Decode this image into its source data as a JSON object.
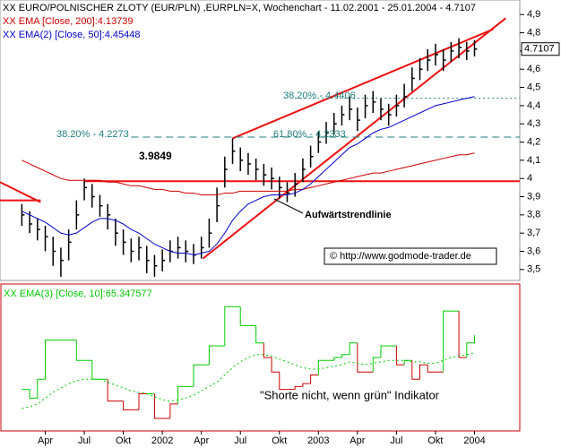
{
  "chart_data": [
    {
      "type": "ohlc",
      "x": [
        2001.1,
        2001.15,
        2001.2,
        2001.25,
        2001.3,
        2001.35,
        2001.4,
        2001.45,
        2001.5,
        2001.55,
        2001.6,
        2001.65,
        2001.7,
        2001.75,
        2001.8,
        2001.85,
        2001.9,
        2001.95,
        2002.0,
        2002.05,
        2002.1,
        2002.15,
        2002.2,
        2002.25,
        2002.3,
        2002.35,
        2002.4,
        2002.45,
        2002.5,
        2002.55,
        2002.6,
        2002.65,
        2002.7,
        2002.75,
        2002.8,
        2002.85,
        2002.9,
        2002.95,
        2003.0,
        2003.05,
        2003.1,
        2003.15,
        2003.2,
        2003.25,
        2003.3,
        2003.35,
        2003.4,
        2003.45,
        2003.5,
        2003.55,
        2003.6,
        2003.65,
        2003.7,
        2003.75,
        2003.8,
        2003.85,
        2003.9,
        2003.95,
        2004.0
      ],
      "xlim": [
        2000.96,
        2004.29
      ],
      "ylim": [
        3.44,
        4.98
      ],
      "yticks": [
        {
          "value": 3.5,
          "label": "3,5"
        },
        {
          "value": 3.6,
          "label": "3,6"
        },
        {
          "value": 3.7,
          "label": "3,7"
        },
        {
          "value": 3.8,
          "label": "3,8"
        },
        {
          "value": 3.9,
          "label": "3,9"
        },
        4,
        {
          "value": 4.1,
          "label": "4,1"
        },
        {
          "value": 4.2,
          "label": "4,2"
        },
        {
          "value": 4.3,
          "label": "4,3"
        },
        {
          "value": 4.4,
          "label": "4,4"
        },
        {
          "value": 4.5,
          "label": "4,5"
        },
        {
          "value": 4.6,
          "label": "4,6"
        },
        {
          "value": 4.7,
          "label": "4,7"
        },
        {
          "value": 4.8,
          "label": "4,8"
        },
        {
          "value": 4.9,
          "label": "4,9"
        }
      ],
      "series": [
        {
          "name": "XX EURO/POLNISCHER ZLOTY (EUR/PLN) ,EURPLN=X, Wochenchart - 11.02.2001 - 25.01.2004 - 4.7107",
          "color": "#000000",
          "high": [
            3.86,
            3.82,
            3.78,
            3.74,
            3.68,
            3.62,
            3.72,
            3.88,
            4.0,
            3.97,
            3.91,
            3.86,
            3.78,
            3.72,
            3.67,
            3.68,
            3.63,
            3.58,
            3.61,
            3.66,
            3.68,
            3.66,
            3.64,
            3.68,
            3.78,
            3.95,
            4.12,
            4.22,
            4.17,
            4.14,
            4.11,
            4.08,
            4.06,
            4.01,
            3.98,
            4.03,
            4.11,
            4.18,
            4.26,
            4.31,
            4.36,
            4.4,
            4.45,
            4.39,
            4.46,
            4.48,
            4.44,
            4.41,
            4.46,
            4.52,
            4.61,
            4.66,
            4.71,
            4.74,
            4.71,
            4.75,
            4.77,
            4.75,
            4.76
          ],
          "low": [
            3.74,
            3.7,
            3.66,
            3.6,
            3.52,
            3.46,
            3.55,
            3.72,
            3.88,
            3.84,
            3.79,
            3.72,
            3.63,
            3.58,
            3.54,
            3.55,
            3.48,
            3.46,
            3.49,
            3.54,
            3.56,
            3.54,
            3.53,
            3.56,
            3.62,
            3.76,
            3.95,
            4.08,
            4.04,
            4.02,
            3.99,
            3.96,
            3.94,
            3.89,
            3.87,
            3.9,
            3.98,
            4.06,
            4.14,
            4.19,
            4.24,
            4.29,
            4.32,
            4.26,
            4.33,
            4.36,
            4.32,
            4.29,
            4.34,
            4.39,
            4.48,
            4.54,
            4.59,
            4.62,
            4.59,
            4.64,
            4.66,
            4.65,
            4.67
          ],
          "close": [
            3.8,
            3.75,
            3.72,
            3.68,
            3.6,
            3.55,
            3.65,
            3.8,
            3.95,
            3.9,
            3.85,
            3.8,
            3.7,
            3.65,
            3.6,
            3.62,
            3.55,
            3.52,
            3.55,
            3.6,
            3.62,
            3.6,
            3.58,
            3.62,
            3.7,
            3.85,
            4.05,
            4.15,
            4.1,
            4.08,
            4.05,
            4.02,
            4.0,
            3.95,
            3.92,
            3.97,
            4.05,
            4.12,
            4.2,
            4.25,
            4.3,
            4.35,
            4.38,
            4.32,
            4.4,
            4.42,
            4.38,
            4.35,
            4.4,
            4.45,
            4.55,
            4.6,
            4.65,
            4.68,
            4.65,
            4.7,
            4.72,
            4.7,
            4.7107
          ]
        },
        {
          "name": "XX EMA [Close, 200]:4.13739",
          "color": "#cc0000",
          "values": [
            4.1,
            4.08,
            4.06,
            4.04,
            4.02,
            4.0,
            3.99,
            3.99,
            3.99,
            3.99,
            3.99,
            3.98,
            3.98,
            3.97,
            3.96,
            3.96,
            3.95,
            3.94,
            3.94,
            3.93,
            3.93,
            3.92,
            3.92,
            3.91,
            3.91,
            3.91,
            3.92,
            3.92,
            3.93,
            3.93,
            3.93,
            3.93,
            3.93,
            3.93,
            3.93,
            3.94,
            3.94,
            3.95,
            3.96,
            3.97,
            3.98,
            3.99,
            4.0,
            4.01,
            4.02,
            4.03,
            4.03,
            4.04,
            4.05,
            4.06,
            4.07,
            4.08,
            4.09,
            4.1,
            4.11,
            4.12,
            4.13,
            4.13,
            4.14
          ]
        },
        {
          "name": "XX EMA(2) [Close, 50]:4.45448",
          "color": "#0000cc",
          "values": [
            3.82,
            3.8,
            3.78,
            3.76,
            3.73,
            3.7,
            3.69,
            3.7,
            3.73,
            3.76,
            3.78,
            3.78,
            3.77,
            3.75,
            3.72,
            3.7,
            3.67,
            3.64,
            3.62,
            3.6,
            3.59,
            3.59,
            3.58,
            3.59,
            3.6,
            3.64,
            3.7,
            3.77,
            3.82,
            3.86,
            3.88,
            3.9,
            3.91,
            3.91,
            3.91,
            3.92,
            3.94,
            3.97,
            4.01,
            4.05,
            4.09,
            4.13,
            4.17,
            4.19,
            4.22,
            4.25,
            4.27,
            4.28,
            4.3,
            4.32,
            4.34,
            4.36,
            4.38,
            4.4,
            4.41,
            4.42,
            4.43,
            4.44,
            4.45
          ]
        }
      ],
      "lines": [
        {
          "x": [
            2002.26,
            2004.2
          ],
          "y": [
            3.56,
            4.88
          ],
          "color": "#ee1111",
          "style": "solid"
        },
        {
          "x": [
            2002.45,
            2004.12
          ],
          "y": [
            4.22,
            4.82
          ],
          "color": "#ee1111",
          "style": "solid"
        },
        {
          "x": [
            2001.5,
            2004.29
          ],
          "y": [
            3.9849,
            3.9849
          ],
          "color": "#ee1111",
          "style": "solid"
        },
        {
          "x": [
            2000.96,
            2001.22
          ],
          "y": [
            3.88,
            3.88
          ],
          "color": "#ee1111",
          "style": "solid"
        },
        {
          "x": [
            2000.96,
            2001.22
          ],
          "y": [
            3.98,
            3.87
          ],
          "color": "#ee1111",
          "style": "solid"
        },
        {
          "x": [
            2001.8,
            2004.29
          ],
          "y": [
            4.2273,
            4.2273
          ],
          "color": "#207f7f",
          "style": "dashed"
        },
        {
          "x": [
            2002.85,
            2004.29
          ],
          "y": [
            4.4406,
            4.4406
          ],
          "color": "#207f7f",
          "style": "dotted"
        }
      ],
      "annotations": [
        "3.9849",
        "38.20% - 4.2273",
        "61.80% - 4.2333",
        "38.20% - 4.4406",
        "Aufwärtstrendlinie",
        "© http://www.godmode-trader.de"
      ]
    },
    {
      "type": "step",
      "title": "\"Shorte nicht, wenn grün\" Indikator",
      "x": [
        2001.1,
        2001.15,
        2001.2,
        2001.25,
        2001.3,
        2001.35,
        2001.4,
        2001.45,
        2001.5,
        2001.55,
        2001.6,
        2001.65,
        2001.7,
        2001.75,
        2001.8,
        2001.85,
        2001.9,
        2001.95,
        2002.0,
        2002.05,
        2002.1,
        2002.15,
        2002.2,
        2002.25,
        2002.3,
        2002.35,
        2002.4,
        2002.45,
        2002.5,
        2002.55,
        2002.6,
        2002.65,
        2002.7,
        2002.75,
        2002.8,
        2002.85,
        2002.9,
        2002.95,
        2003.0,
        2003.05,
        2003.1,
        2003.15,
        2003.2,
        2003.25,
        2003.3,
        2003.35,
        2003.4,
        2003.45,
        2003.5,
        2003.55,
        2003.6,
        2003.65,
        2003.7,
        2003.75,
        2003.8,
        2003.85,
        2003.9,
        2003.95,
        2004.0
      ],
      "xlim": [
        2000.96,
        2004.29
      ],
      "ylim": [
        0,
        100
      ],
      "xticks": [
        {
          "value": 2001.25,
          "label": "Apr"
        },
        {
          "value": 2001.5,
          "label": "Jul"
        },
        {
          "value": 2001.75,
          "label": "Okt"
        },
        2002,
        {
          "value": 2002.25,
          "label": "Apr"
        },
        {
          "value": 2002.5,
          "label": "Jul"
        },
        {
          "value": 2002.75,
          "label": "Okt"
        },
        2003,
        {
          "value": 2003.25,
          "label": "Apr"
        },
        {
          "value": 2003.5,
          "label": "Jul"
        },
        {
          "value": 2003.75,
          "label": "Okt"
        },
        2004
      ],
      "series": [
        {
          "name": "XX EMA(3) [Close, 10]:65.347577",
          "color": "#00cc00",
          "down_color": "#cc0000",
          "values": [
            28,
            22,
            35,
            62,
            62,
            62,
            62,
            48,
            48,
            35,
            35,
            20,
            20,
            14,
            14,
            25,
            25,
            8,
            8,
            18,
            30,
            30,
            45,
            45,
            58,
            58,
            85,
            85,
            72,
            72,
            60,
            50,
            40,
            28,
            28,
            30,
            32,
            38,
            48,
            48,
            50,
            52,
            60,
            40,
            40,
            50,
            58,
            58,
            45,
            48,
            35,
            45,
            40,
            40,
            82,
            82,
            50,
            60,
            65.347577
          ]
        },
        {
          "color": "#00cc00",
          "style": "dotted",
          "values": [
            15,
            16,
            18,
            22,
            26,
            29,
            32,
            34,
            35,
            35,
            35,
            33,
            31,
            29,
            27,
            26,
            25,
            23,
            21,
            20,
            21,
            22,
            24,
            27,
            30,
            33,
            38,
            43,
            47,
            50,
            52,
            52,
            51,
            49,
            47,
            45,
            43,
            42,
            42,
            43,
            44,
            45,
            47,
            46,
            45,
            46,
            47,
            48,
            48,
            48,
            47,
            47,
            46,
            46,
            48,
            50,
            51,
            52,
            53
          ]
        }
      ]
    }
  ]
}
